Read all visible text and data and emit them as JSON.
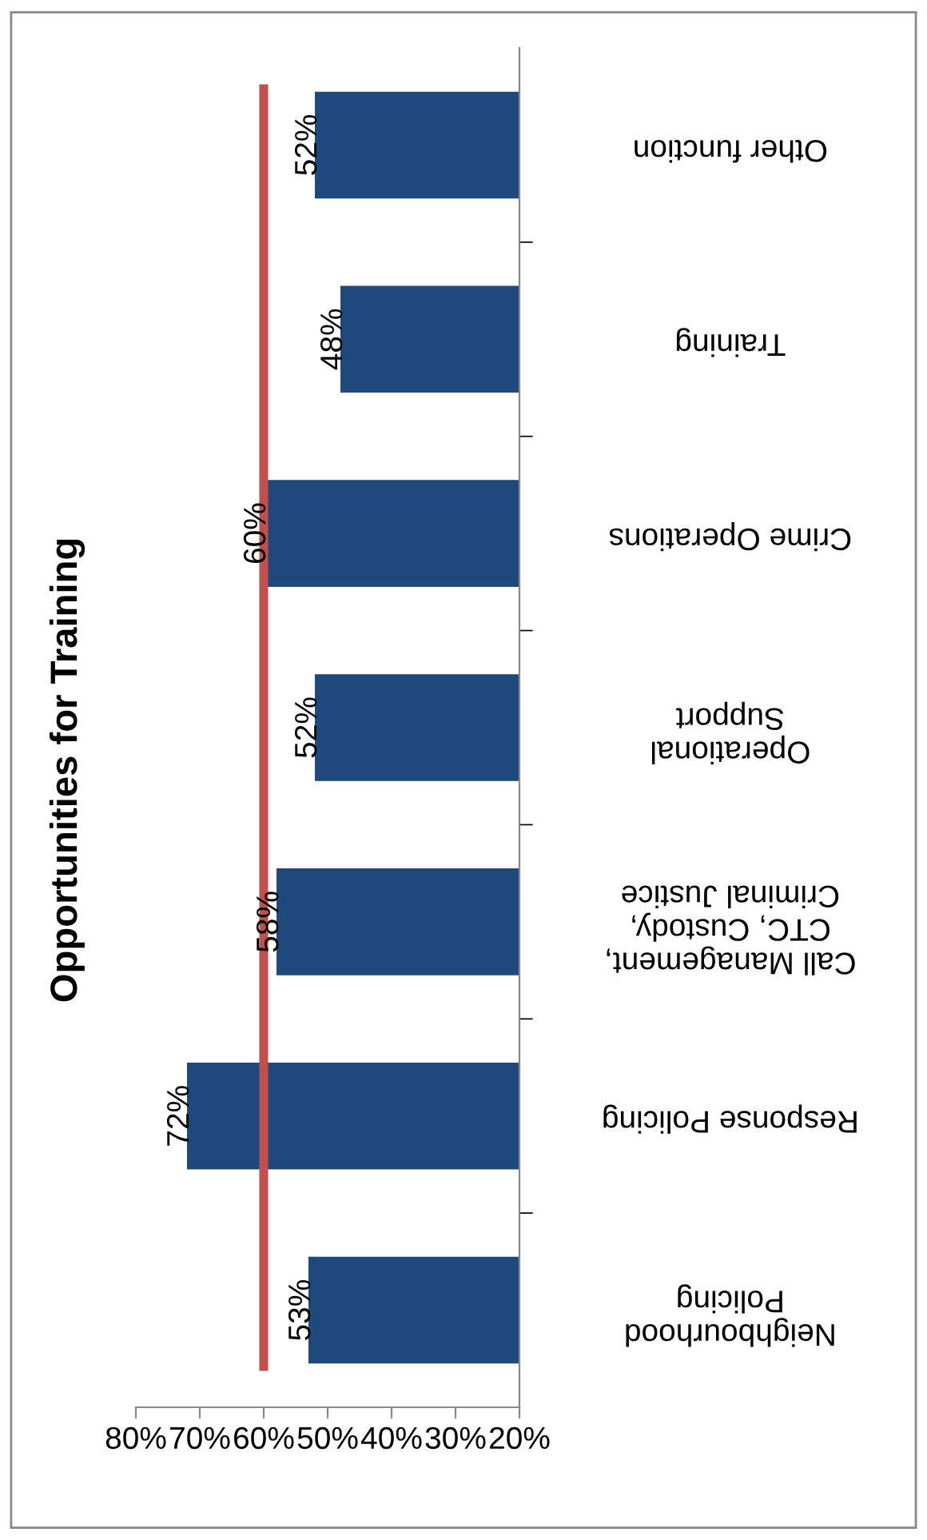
{
  "chart_data": {
    "type": "bar",
    "orientation": "horizontal",
    "title": "Opportunities for Training",
    "categories": [
      "Other function",
      "Training",
      "Crime Operations",
      "Operational\nSupport",
      "Call Management,\nCTC, Custody,\nCriminal Justice",
      "Response Policing",
      "Neighbourhood\nPolicing"
    ],
    "values": [
      52,
      48,
      60,
      52,
      58,
      72,
      53
    ],
    "color": "#1f497d",
    "xlim": [
      80,
      20
    ],
    "xticks": [
      {
        "value": 80,
        "label": "80%"
      },
      {
        "value": 70,
        "label": "70%"
      },
      {
        "value": 60,
        "label": "60%"
      },
      {
        "value": 50,
        "label": "50%"
      },
      {
        "value": 40,
        "label": "40%"
      },
      {
        "value": 30,
        "label": "30%"
      },
      {
        "value": 20,
        "label": "20%"
      }
    ],
    "value_labels": [
      "52%",
      "48%",
      "60%",
      "52%",
      "58%",
      "72%",
      "53%"
    ],
    "ref_lines": [
      {
        "axis": "x",
        "value": 60,
        "color": "#c0504d"
      }
    ],
    "grid": false,
    "legend": false
  }
}
